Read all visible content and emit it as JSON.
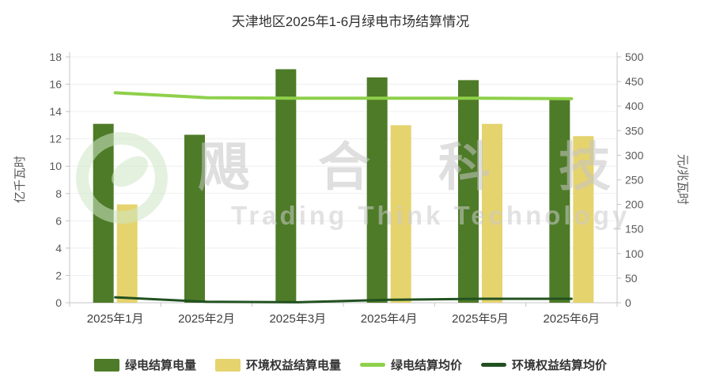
{
  "title": "天津地区2025年1-6月绿电市场结算情况",
  "watermark": {
    "cn": "飓合科技",
    "en": "Trading Think Technology"
  },
  "chart_data": {
    "type": "bar",
    "categories": [
      "2025年1月",
      "2025年2月",
      "2025年3月",
      "2025年4月",
      "2025年5月",
      "2025年6月"
    ],
    "series": [
      {
        "name": "绿电结算电量",
        "type": "bar",
        "axis": "left",
        "color": "#4e7b27",
        "values": [
          13.1,
          12.3,
          17.1,
          16.5,
          16.3,
          14.9
        ]
      },
      {
        "name": "环境权益结算电量",
        "type": "bar",
        "axis": "left",
        "color": "#e5d36e",
        "values": [
          7.2,
          0,
          0,
          13.0,
          13.1,
          12.2
        ]
      },
      {
        "name": "绿电结算均价",
        "type": "line",
        "axis": "right",
        "color": "#8ed04a",
        "values": [
          427,
          417,
          416,
          416,
          416,
          415
        ]
      },
      {
        "name": "环境权益结算均价",
        "type": "line",
        "axis": "right",
        "color": "#215120",
        "values": [
          11,
          2,
          1,
          6,
          8,
          8
        ]
      }
    ],
    "title": "天津地区2025年1-6月绿电市场结算情况",
    "xlabel": "",
    "ylabel_left": "亿千瓦时",
    "ylabel_right": "元/兆瓦时",
    "ylim_left": [
      0,
      18
    ],
    "ylim_right": [
      0,
      500
    ],
    "ytick_step_left": 2,
    "ytick_step_right": 50,
    "grid": true,
    "legend_position": "bottom"
  }
}
